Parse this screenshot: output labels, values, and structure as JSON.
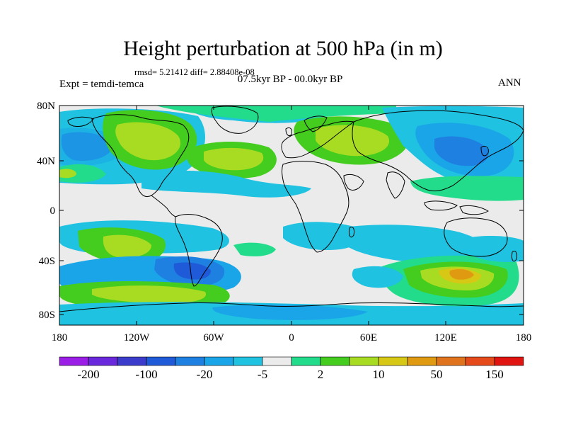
{
  "header": {
    "title": "Height perturbation at 500 hPa (in m)",
    "stats": "rmsd= 5.21412 diff= 2.88408e-08",
    "experiment": "Expt = temdi-temca",
    "period": "07.5kyr BP - 00.0kyr BP",
    "season": "ANN"
  },
  "axes": {
    "lat_ticks": [
      "80N",
      "40N",
      "0",
      "40S",
      "80S"
    ],
    "lon_ticks": [
      "180",
      "120W",
      "60W",
      "0",
      "60E",
      "120E",
      "180"
    ]
  },
  "colorbar": {
    "colors": [
      "#9a1ee6",
      "#6a28dc",
      "#3c3ccc",
      "#1f5ad8",
      "#1e80e0",
      "#1aa5e8",
      "#1fc2e0",
      "#ebebeb",
      "#22dc8c",
      "#44cc1e",
      "#a8dc22",
      "#d6c814",
      "#e09a12",
      "#e0741e",
      "#e44a1a",
      "#e01410"
    ],
    "labels": [
      "-200",
      "-100",
      "-20",
      "-5",
      "2",
      "10",
      "50",
      "150"
    ]
  },
  "map_colors": {
    "background": "#ebebeb",
    "coast": "#000000"
  }
}
